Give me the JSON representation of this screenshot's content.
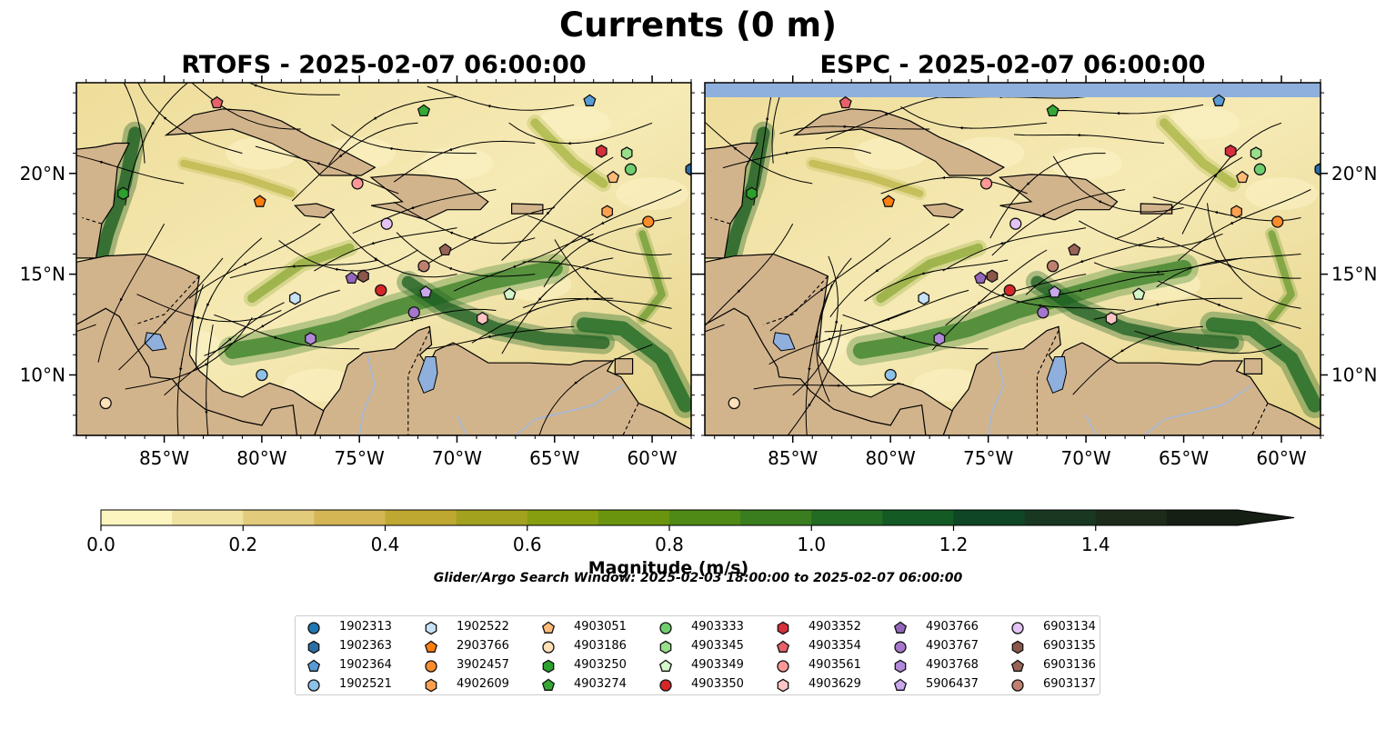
{
  "title": "Currents (0 m)",
  "panels": [
    {
      "title": "RTOFS - 2025-02-07 06:00:00"
    },
    {
      "title": "ESPC - 2025-02-07 06:00:00"
    }
  ],
  "axes": {
    "x_ticks": [
      "85°W",
      "80°W",
      "75°W",
      "70°W",
      "65°W",
      "60°W"
    ],
    "y_ticks": [
      "20°N",
      "15°N",
      "10°N"
    ]
  },
  "colorbar": {
    "label": "Magnitude (m/s)",
    "ticks": [
      "0.0",
      "0.2",
      "0.4",
      "0.6",
      "0.8",
      "1.0",
      "1.2",
      "1.4"
    ],
    "colors": [
      "#fdf5c0",
      "#f0e3a1",
      "#e3cb7c",
      "#d4b655",
      "#bfa832",
      "#a3a21e",
      "#869e10",
      "#6a940e",
      "#4f8a16",
      "#3a7d1e",
      "#216c22",
      "#135a24",
      "#0f4726",
      "#183821",
      "#1c2b1a",
      "#151f14"
    ]
  },
  "search_window": "Glider/Argo Search Window: 2025-02-03 18:00:00 to 2025-02-07 06:00:00",
  "chart_data": {
    "type": "map",
    "xlim": [
      -89.5,
      -58.0
    ],
    "ylim": [
      7.0,
      24.5
    ],
    "value_range": [
      0.0,
      1.5
    ],
    "markers": [
      {
        "id": "1902313",
        "shape": "circle",
        "color": "#1f77b4",
        "lon": -58.0,
        "lat": 20.2
      },
      {
        "id": "1902363",
        "shape": "hexagon",
        "color": "#2a6ea6",
        "lon": -58.0,
        "lat": 20.2
      },
      {
        "id": "1902364",
        "shape": "pentagon",
        "color": "#5a9bd5",
        "lon": -63.2,
        "lat": 23.6
      },
      {
        "id": "1902521",
        "shape": "circle",
        "color": "#8ec1e8",
        "lon": -80.0,
        "lat": 10.0
      },
      {
        "id": "1902522",
        "shape": "hexagon",
        "color": "#c6e2f7",
        "lon": -78.3,
        "lat": 13.8
      },
      {
        "id": "2903766",
        "shape": "pentagon",
        "color": "#ff7f0e",
        "lon": -80.1,
        "lat": 18.6
      },
      {
        "id": "3902457",
        "shape": "circle",
        "color": "#ff8c2a",
        "lon": -60.2,
        "lat": 17.6
      },
      {
        "id": "4902609",
        "shape": "hexagon",
        "color": "#ffa050",
        "lon": -62.3,
        "lat": 18.1
      },
      {
        "id": "4903051",
        "shape": "pentagon",
        "color": "#ffbb78",
        "lon": -62.0,
        "lat": 19.8
      },
      {
        "id": "4903186",
        "shape": "circle",
        "color": "#ffe0b8",
        "lon": -88.0,
        "lat": 8.6
      },
      {
        "id": "4903250",
        "shape": "hexagon",
        "color": "#2ca02c",
        "lon": -87.1,
        "lat": 19.0
      },
      {
        "id": "4903274",
        "shape": "pentagon",
        "color": "#35a835",
        "lon": -71.7,
        "lat": 23.1
      },
      {
        "id": "4903333",
        "shape": "circle",
        "color": "#6fcf6f",
        "lon": -61.1,
        "lat": 20.2
      },
      {
        "id": "4903345",
        "shape": "hexagon",
        "color": "#98df8a",
        "lon": -61.3,
        "lat": 21.0
      },
      {
        "id": "4903349",
        "shape": "pentagon",
        "color": "#d4f7c9",
        "lon": -67.3,
        "lat": 14.0
      },
      {
        "id": "4903350",
        "shape": "circle",
        "color": "#d62728",
        "lon": -73.9,
        "lat": 14.2
      },
      {
        "id": "4903352",
        "shape": "hexagon",
        "color": "#d62f3b",
        "lon": -62.6,
        "lat": 21.1
      },
      {
        "id": "4903354",
        "shape": "pentagon",
        "color": "#e8606a",
        "lon": -82.3,
        "lat": 23.5
      },
      {
        "id": "4903561",
        "shape": "circle",
        "color": "#ff9896",
        "lon": -75.1,
        "lat": 19.5
      },
      {
        "id": "4903629",
        "shape": "hexagon",
        "color": "#ffc4c4",
        "lon": -68.7,
        "lat": 12.8
      },
      {
        "id": "4903766",
        "shape": "pentagon",
        "color": "#9467bd",
        "lon": -75.4,
        "lat": 14.8
      },
      {
        "id": "4903767",
        "shape": "circle",
        "color": "#a576cc",
        "lon": -72.2,
        "lat": 13.1
      },
      {
        "id": "4903768",
        "shape": "hexagon",
        "color": "#b08ad8",
        "lon": -77.5,
        "lat": 11.8
      },
      {
        "id": "5906437",
        "shape": "pentagon",
        "color": "#c9a8ec",
        "lon": -71.6,
        "lat": 14.1
      },
      {
        "id": "6903134",
        "shape": "circle",
        "color": "#e4c4f5",
        "lon": -73.6,
        "lat": 17.5
      },
      {
        "id": "6903135",
        "shape": "hexagon",
        "color": "#8c564b",
        "lon": -74.8,
        "lat": 14.9
      },
      {
        "id": "6903136",
        "shape": "pentagon",
        "color": "#9a6358",
        "lon": -70.6,
        "lat": 16.2
      },
      {
        "id": "6903137",
        "shape": "circle",
        "color": "#c08070",
        "lon": -71.7,
        "lat": 15.4
      }
    ]
  }
}
